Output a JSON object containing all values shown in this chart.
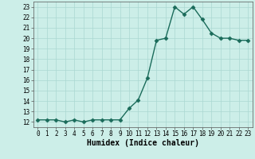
{
  "x": [
    0,
    1,
    2,
    3,
    4,
    5,
    6,
    7,
    8,
    9,
    10,
    11,
    12,
    13,
    14,
    15,
    16,
    17,
    18,
    19,
    20,
    21,
    22,
    23
  ],
  "y": [
    12.2,
    12.2,
    12.2,
    12.0,
    12.2,
    12.0,
    12.2,
    12.2,
    12.2,
    12.2,
    13.3,
    14.1,
    16.2,
    19.8,
    20.0,
    23.0,
    22.3,
    23.0,
    21.8,
    20.5,
    20.0,
    20.0,
    19.8,
    19.8
  ],
  "line_color": "#1a6b5a",
  "marker": "D",
  "marker_size": 2.5,
  "bg_color": "#cceee8",
  "grid_color": "#aad8d2",
  "xlabel": "Humidex (Indice chaleur)",
  "ylim": [
    11.5,
    23.5
  ],
  "xlim": [
    -0.5,
    23.5
  ],
  "yticks": [
    12,
    13,
    14,
    15,
    16,
    17,
    18,
    19,
    20,
    21,
    22,
    23
  ],
  "xticks": [
    0,
    1,
    2,
    3,
    4,
    5,
    6,
    7,
    8,
    9,
    10,
    11,
    12,
    13,
    14,
    15,
    16,
    17,
    18,
    19,
    20,
    21,
    22,
    23
  ],
  "tick_fontsize": 5.5,
  "xlabel_fontsize": 7,
  "linewidth": 1.0
}
